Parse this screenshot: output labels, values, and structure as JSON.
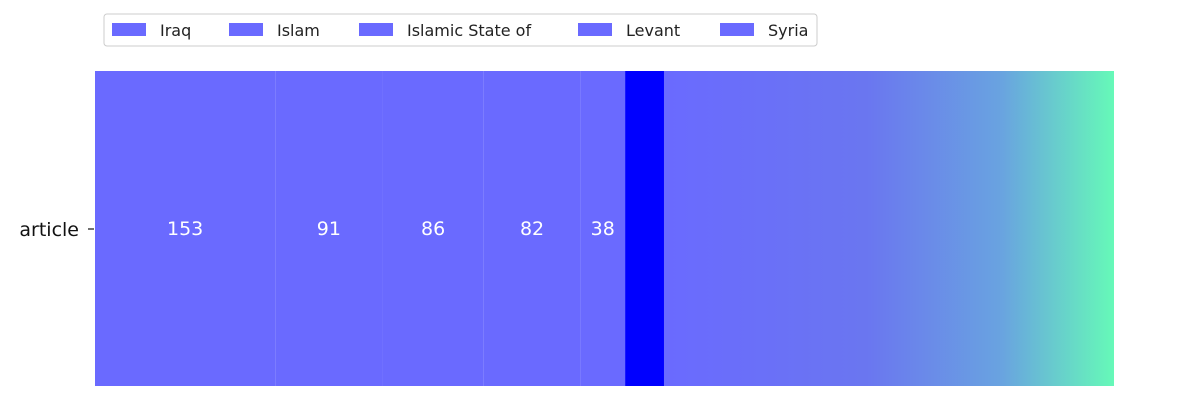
{
  "chart_data": {
    "type": "bar",
    "orientation": "horizontal",
    "stacked": true,
    "categories": [
      "article"
    ],
    "series": [
      {
        "name": "Iraq",
        "values": [
          153
        ]
      },
      {
        "name": "Islam",
        "values": [
          91
        ]
      },
      {
        "name": "Islamic State of",
        "values": [
          86
        ]
      },
      {
        "name": "Levant",
        "values": [
          82
        ]
      },
      {
        "name": "Syria",
        "values": [
          38
        ]
      }
    ],
    "xlim": [
      0,
      865
    ],
    "series_color": "#6a6aff",
    "highlight_color": "#0000ff",
    "gradient_colors": [
      "#6a6aff",
      "#6a76f0",
      "#69a3e0",
      "#66f9b8"
    ],
    "legend": {
      "placement": "top-left",
      "entries": [
        "Iraq",
        "Islam",
        "Islamic State of",
        "Levant",
        "Syria"
      ]
    },
    "title": "",
    "xlabel": "",
    "ylabel": "",
    "grid": false
  }
}
